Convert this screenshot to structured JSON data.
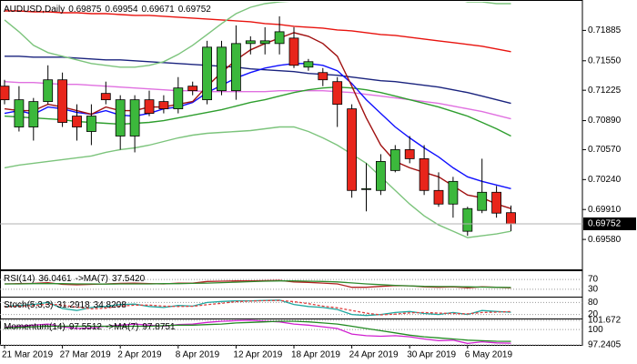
{
  "chart_data": [
    {
      "type": "candlestick",
      "title": "AUDUSD,Daily",
      "categories": [
        "21 Mar 2019",
        null,
        null,
        null,
        "27 Mar 2019",
        null,
        null,
        null,
        "2 Apr 2019",
        null,
        null,
        null,
        "8 Apr 2019",
        null,
        null,
        null,
        "12 Apr 2019",
        null,
        null,
        null,
        "18 Apr 2019",
        null,
        null,
        null,
        "24 Apr 2019",
        null,
        null,
        null,
        "30 Apr 2019",
        null,
        null,
        null,
        "6 May 2019",
        null,
        null,
        null
      ],
      "open": [
        0.7127,
        0.7082,
        0.7082,
        0.711,
        0.7134,
        0.7094,
        0.7077,
        0.7119,
        0.7072,
        0.7072,
        0.7112,
        0.711,
        0.7102,
        0.7127,
        0.7112,
        0.7122,
        0.7122,
        0.7174,
        0.7174,
        0.7174,
        0.718,
        0.7148,
        0.7142,
        0.7132,
        0.7102,
        0.7014,
        0.7012,
        0.7034,
        0.7057,
        0.7047,
        0.7012,
        0.6997,
        0.6967,
        0.699,
        0.701,
        0.69875
      ],
      "high": [
        0.7134,
        0.7127,
        0.7114,
        0.715,
        0.7142,
        0.7107,
        0.7107,
        0.7132,
        0.7117,
        0.7117,
        0.7122,
        0.7117,
        0.7137,
        0.7132,
        0.7177,
        0.7177,
        0.7194,
        0.7182,
        0.7192,
        0.7204,
        0.7192,
        0.7157,
        0.7147,
        0.7137,
        0.7107,
        0.7042,
        0.7052,
        0.7062,
        0.7072,
        0.7062,
        0.7032,
        0.7027,
        0.6994,
        0.7047,
        0.7017,
        0.69954
      ],
      "low": [
        0.7107,
        0.7077,
        0.7067,
        0.7107,
        0.7082,
        0.7067,
        0.7062,
        0.7107,
        0.7057,
        0.7054,
        0.7094,
        0.7097,
        0.7097,
        0.7117,
        0.7107,
        0.7117,
        0.7112,
        0.7162,
        0.7162,
        0.7162,
        0.7147,
        0.7144,
        0.7127,
        0.7082,
        0.7004,
        0.6989,
        0.7007,
        0.7032,
        0.7042,
        0.7007,
        0.6994,
        0.6982,
        0.6962,
        0.6987,
        0.6982,
        0.69671
      ],
      "close": [
        0.7112,
        0.7112,
        0.711,
        0.7134,
        0.7087,
        0.7082,
        0.7094,
        0.7112,
        0.7112,
        0.7112,
        0.7097,
        0.7102,
        0.7125,
        0.7122,
        0.717,
        0.717,
        0.7174,
        0.7177,
        0.7177,
        0.7187,
        0.715,
        0.7154,
        0.7134,
        0.7107,
        0.7012,
        0.7014,
        0.7044,
        0.7057,
        0.7047,
        0.7012,
        0.6997,
        0.7022,
        0.6992,
        0.701,
        0.6987,
        0.69752
      ],
      "up_color": "#3cb83c",
      "down_color": "#e8251b",
      "overlays": [
        {
          "color": "#e8130e",
          "values": [
            0.721,
            0.721,
            0.7209,
            0.7209,
            0.7208,
            0.7208,
            0.7207,
            0.7207,
            0.7206,
            0.7205,
            0.7205,
            0.7204,
            0.7203,
            0.7202,
            0.7201,
            0.72,
            0.7199,
            0.7198,
            0.7196,
            0.7195,
            0.7193,
            0.7192,
            0.7191,
            0.7189,
            0.7188,
            0.7186,
            0.7184,
            0.7183,
            0.7181,
            0.7179,
            0.7177,
            0.7175,
            0.7173,
            0.7171,
            0.7168,
            0.7165
          ]
        },
        {
          "color": "#1a237e",
          "values": [
            0.716,
            0.716,
            0.7159,
            0.7159,
            0.7159,
            0.7158,
            0.7157,
            0.7156,
            0.7156,
            0.7155,
            0.7154,
            0.7153,
            0.7152,
            0.7151,
            0.715,
            0.7149,
            0.7148,
            0.7146,
            0.7145,
            0.7144,
            0.7143,
            0.7141,
            0.714,
            0.7139,
            0.7137,
            0.7135,
            0.7133,
            0.7132,
            0.713,
            0.7128,
            0.7126,
            0.7123,
            0.712,
            0.7116,
            0.7112,
            0.7108
          ]
        },
        {
          "color": "#e070e0",
          "values": [
            0.7132,
            0.7131,
            0.7131,
            0.713,
            0.7129,
            0.7129,
            0.7128,
            0.7127,
            0.7126,
            0.7125,
            0.7124,
            0.7123,
            0.7122,
            0.7122,
            0.7121,
            0.7121,
            0.7121,
            0.7121,
            0.7121,
            0.7122,
            0.7122,
            0.7122,
            0.7122,
            0.7121,
            0.712,
            0.7118,
            0.7116,
            0.7114,
            0.7112,
            0.711,
            0.7108,
            0.7105,
            0.7102,
            0.7099,
            0.7095,
            0.7091
          ]
        },
        {
          "color": "#2e9e2e",
          "values": [
            0.7094,
            0.7093,
            0.7092,
            0.7091,
            0.709,
            0.7088,
            0.7087,
            0.7086,
            0.7085,
            0.7086,
            0.7087,
            0.7089,
            0.7092,
            0.7095,
            0.7098,
            0.7101,
            0.7105,
            0.7109,
            0.7112,
            0.7116,
            0.712,
            0.7123,
            0.7125,
            0.7126,
            0.7125,
            0.7123,
            0.712,
            0.7116,
            0.7112,
            0.7108,
            0.7104,
            0.7099,
            0.7094,
            0.7087,
            0.708,
            0.7072
          ]
        },
        {
          "color": "#1010ff",
          "values": [
            0.7097,
            0.71,
            0.7096,
            0.7104,
            0.7102,
            0.7098,
            0.7096,
            0.71,
            0.7095,
            0.7094,
            0.7097,
            0.7102,
            0.7104,
            0.7109,
            0.712,
            0.7128,
            0.7136,
            0.7142,
            0.7147,
            0.715,
            0.7152,
            0.7152,
            0.715,
            0.7144,
            0.713,
            0.7112,
            0.7097,
            0.7082,
            0.707,
            0.7059,
            0.7049,
            0.7037,
            0.7027,
            0.7022,
            0.7018,
            0.7014
          ]
        },
        {
          "color": "#a01010",
          "values": [
            0.7102,
            0.71,
            0.71,
            0.7107,
            0.7104,
            0.71,
            0.7096,
            0.7104,
            0.71,
            0.71,
            0.7104,
            0.7104,
            0.7107,
            0.711,
            0.7127,
            0.7142,
            0.7156,
            0.7167,
            0.7174,
            0.718,
            0.7186,
            0.7182,
            0.7174,
            0.716,
            0.7127,
            0.7092,
            0.7062,
            0.7044,
            0.7037,
            0.7032,
            0.7027,
            0.7017,
            0.7007,
            0.7004,
            0.6997,
            0.6992
          ]
        },
        {
          "color": "#7cc47c",
          "values": [
            0.72,
            0.7187,
            0.7172,
            0.7164,
            0.716,
            0.7156,
            0.7152,
            0.715,
            0.7148,
            0.7148,
            0.715,
            0.7154,
            0.7162,
            0.7172,
            0.7184,
            0.7196,
            0.7207,
            0.7214,
            0.7218,
            0.722,
            0.7221,
            0.7224,
            0.7227,
            0.723,
            0.7232,
            0.7234,
            0.7236,
            0.7234,
            0.7232,
            0.723,
            0.7228,
            0.7224,
            0.722,
            0.722,
            0.7218,
            0.7218
          ]
        },
        {
          "color": "#7cc47c",
          "values": [
            0.7037,
            0.704,
            0.7042,
            0.7044,
            0.7046,
            0.7048,
            0.705,
            0.7054,
            0.7057,
            0.7059,
            0.7062,
            0.7066,
            0.707,
            0.7073,
            0.7075,
            0.7076,
            0.7077,
            0.7078,
            0.708,
            0.7082,
            0.7082,
            0.7077,
            0.707,
            0.7062,
            0.7052,
            0.7042,
            0.7027,
            0.7012,
            0.6997,
            0.6984,
            0.6974,
            0.6967,
            0.696,
            0.6962,
            0.6964,
            0.6967
          ]
        }
      ],
      "ylim": [
        0.6925,
        0.722
      ],
      "yticks": [
        0.71885,
        {
          "value": 0.7155,
          "label": "0.71550"
        },
        0.71225,
        {
          "value": 0.7089,
          "label": "0.70890"
        },
        {
          "value": 0.7057,
          "label": "0.70570"
        },
        {
          "value": 0.7024,
          "label": "0.70240"
        },
        {
          "value": 0.6991,
          "label": "0.69910"
        },
        {
          "value": 0.6958,
          "label": "0.69580"
        }
      ]
    },
    {
      "type": "line",
      "title": "RSI(14)",
      "ylim": [
        0,
        100
      ],
      "yticks": [
        70,
        30
      ],
      "series": [
        {
          "color": "#b22222",
          "values": [
            52,
            53,
            54,
            57,
            50,
            48,
            50,
            52,
            54,
            55,
            53,
            52,
            55,
            55,
            62,
            63,
            64,
            64,
            65,
            66,
            60,
            58,
            55,
            52,
            38,
            38,
            42,
            45,
            44,
            40,
            38,
            40,
            36,
            40,
            38,
            36.0461
          ]
        },
        {
          "name": "->MA(7)",
          "color": "#2e8b2e",
          "values": [
            52,
            52,
            53,
            53,
            53,
            52,
            52,
            51,
            52,
            52,
            52,
            53,
            53,
            54,
            55,
            57,
            59,
            61,
            63,
            64,
            64,
            63,
            62,
            60,
            56,
            52,
            49,
            46,
            44,
            42,
            41,
            41,
            40,
            39,
            38,
            37.542
          ],
          "value_labels": [
            null,
            null,
            null,
            null,
            null,
            null,
            null,
            null,
            null,
            null,
            null,
            null,
            null,
            null,
            null,
            null,
            null,
            null,
            null,
            null,
            null,
            null,
            null,
            null,
            null,
            null,
            null,
            null,
            null,
            null,
            null,
            null,
            null,
            null,
            null,
            "37.5420"
          ]
        }
      ]
    },
    {
      "type": "line",
      "title": "Stoch(5,3,3)",
      "ylim": [
        0,
        100
      ],
      "yticks": [
        80,
        20
      ],
      "series": [
        {
          "color": "#20a8a0",
          "values": [
            60,
            65,
            70,
            80,
            50,
            40,
            55,
            60,
            70,
            72,
            60,
            55,
            65,
            62,
            80,
            85,
            88,
            88,
            90,
            92,
            70,
            60,
            55,
            45,
            20,
            15,
            20,
            30,
            35,
            25,
            20,
            30,
            20,
            40,
            35,
            31.2918
          ]
        },
        {
          "color": "#e04040",
          "dashed": true,
          "values": [
            58,
            62,
            65,
            72,
            67,
            57,
            48,
            52,
            62,
            67,
            67,
            62,
            60,
            61,
            69,
            76,
            84,
            87,
            89,
            90,
            84,
            74,
            62,
            53,
            40,
            27,
            18,
            22,
            28,
            30,
            27,
            25,
            23,
            30,
            32,
            34.8208
          ]
        }
      ]
    },
    {
      "type": "line",
      "title": "Momentum(14)",
      "ylim": [
        97.2405,
        101.672
      ],
      "yticks": [
        101.672,
        100,
        97.2405
      ],
      "series": [
        {
          "color": "#d020d0",
          "values": [
            100.4,
            100.6,
            100.8,
            101,
            100.5,
            100.2,
            100.3,
            100.6,
            100.8,
            101,
            100.8,
            100.6,
            100.9,
            101,
            101.3,
            101.5,
            101.6,
            101.67,
            101.5,
            101.4,
            101,
            100.8,
            100.5,
            100.2,
            99.2,
            98.9,
            98.8,
            98.9,
            98.7,
            98.3,
            98,
            98.1,
            97.5,
            97.8,
            97.6,
            97.5512
          ]
        },
        {
          "name": "->MA(7)",
          "color": "#228b22",
          "values": [
            100.3,
            100.4,
            100.5,
            100.6,
            100.6,
            100.6,
            100.6,
            100.6,
            100.6,
            100.6,
            100.6,
            100.7,
            100.8,
            100.8,
            100.9,
            101,
            101.2,
            101.3,
            101.4,
            101.5,
            101.5,
            101.4,
            101.2,
            101,
            100.6,
            100.2,
            99.8,
            99.4,
            99,
            98.7,
            98.5,
            98.3,
            98.1,
            98,
            97.9,
            97.8751
          ]
        }
      ]
    }
  ]
}
